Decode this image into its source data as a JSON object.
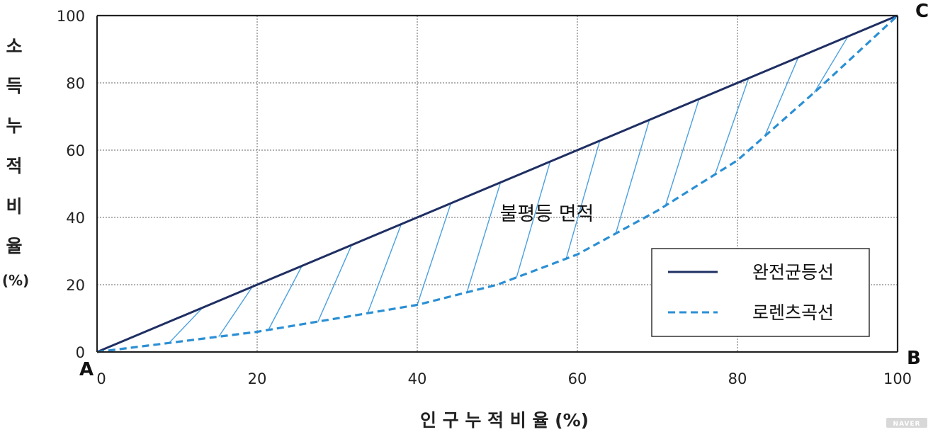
{
  "chart_data": {
    "type": "line",
    "xlabel": "인 구 누 적 비 율 (%)",
    "ylabel_chars": [
      "소",
      "득",
      "누",
      "적",
      "비",
      "율",
      "(%)"
    ],
    "xlim": [
      0,
      100
    ],
    "ylim": [
      0,
      100
    ],
    "x_ticks": [
      "0",
      "20",
      "40",
      "60",
      "80",
      "100"
    ],
    "y_ticks": [
      "0",
      "20",
      "40",
      "60",
      "80",
      "100"
    ],
    "grid": true,
    "legend_position": "bottom-right",
    "series": [
      {
        "name": "완전균등선",
        "style": "solid",
        "color": "#1f2f63",
        "x": [
          0,
          100
        ],
        "y": [
          0,
          100
        ]
      },
      {
        "name": "로렌츠곡선",
        "style": "dashed",
        "color": "#2b8fd4",
        "x": [
          0,
          10,
          20,
          30,
          40,
          50,
          60,
          70,
          80,
          90,
          100
        ],
        "y": [
          0,
          3,
          6,
          10,
          14,
          20,
          29,
          42,
          57,
          78,
          100
        ]
      }
    ],
    "annotations": {
      "area_label": "불평등 면적",
      "corner_a": "A",
      "corner_b": "B",
      "corner_c": "C"
    },
    "hatch_color": "#4aa0e0"
  },
  "watermark": "NAVER"
}
